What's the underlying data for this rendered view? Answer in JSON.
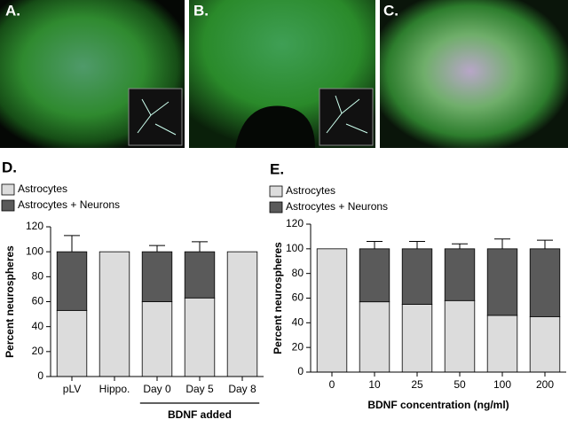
{
  "panels": [
    "A.",
    "B.",
    "C."
  ],
  "chart_data": [
    {
      "type": "stacked-bar",
      "label": "D.",
      "y_label": "Percent  neurospheres",
      "categories": [
        "pLV",
        "Hippo.",
        "Day 0",
        "Day 5",
        "Day 8"
      ],
      "series": [
        {
          "name": "Astrocytes",
          "color": "#dcdcdc",
          "values": [
            53,
            100,
            60,
            63,
            100
          ]
        },
        {
          "name": "Astrocytes + Neurons",
          "color": "#5a5a5a",
          "values": [
            47,
            0,
            40,
            37,
            0
          ],
          "errors": [
            13,
            null,
            5,
            8,
            null
          ]
        }
      ],
      "annotation": "BDNF added",
      "ylim": [
        0,
        120
      ],
      "yticks": [
        0,
        20,
        40,
        60,
        80,
        100,
        120
      ]
    },
    {
      "type": "stacked-bar",
      "label": "E.",
      "y_label": "Percent  neurospheres",
      "x_label": "BDNF concentration (ng/ml)",
      "categories": [
        "0",
        "10",
        "25",
        "50",
        "100",
        "200"
      ],
      "series": [
        {
          "name": "Astrocytes",
          "color": "#dcdcdc",
          "values": [
            100,
            57,
            55,
            58,
            46,
            45
          ]
        },
        {
          "name": "Astrocytes + Neurons",
          "color": "#5a5a5a",
          "values": [
            0,
            43,
            45,
            42,
            54,
            55
          ],
          "errors": [
            null,
            6,
            6,
            4,
            8,
            7
          ]
        }
      ],
      "ylim": [
        0,
        120
      ],
      "yticks": [
        0,
        20,
        40,
        60,
        80,
        100,
        120
      ]
    }
  ]
}
